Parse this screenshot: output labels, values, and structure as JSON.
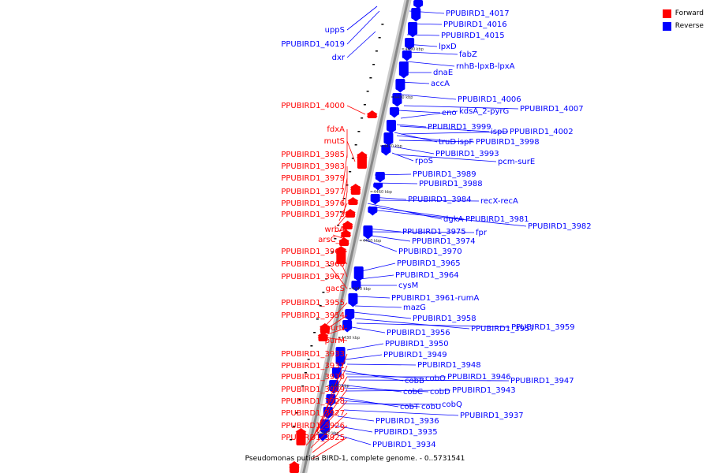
{
  "colors": {
    "forward": "#ff0000",
    "reverse": "#0000ff",
    "backbone": "#888888"
  },
  "legend": [
    {
      "label": "Forward",
      "color": "#ff0000"
    },
    {
      "label": "Reverse",
      "color": "#0000ff"
    }
  ],
  "caption": "Pseudomonas putida BIRD-1, complete genome. - 0..5731541",
  "scale_ticks": [
    "4490 kbp",
    "4480 kbp",
    "4470 kbp",
    "4460 kbp",
    "4450 kbp",
    "4440 kbp",
    "4430 kbp",
    "4420 kbp",
    "4410 kbp"
  ],
  "forward_labels": [
    "uppS",
    "PPUBIRD1_4019",
    "dxr",
    "PPUBIRD1_4000",
    "fdxA",
    "mutS",
    "PPUBIRD1_3985",
    "PPUBIRD1_3983",
    "PPUBIRD1_3979",
    "PPUBIRD1_3977",
    "PPUBIRD1_3976",
    "PPUBIRD1_3973",
    "wrbA",
    "arsC_2",
    "PPUBIRD1_3969",
    "PPUBIRD1_3968",
    "PPUBIRD1_3967",
    "gacS",
    "PPUBIRD1_3955",
    "PPUBIRD1_3954",
    "purN",
    "purM",
    "PPUBIRD1_3933",
    "PPUBIRD1_3931",
    "PPUBIRD1_3930",
    "PPUBIRD1_3929",
    "PPUBIRD1_3928",
    "PPUBIRD1_3927",
    "PPUBIRD1_3926",
    "PPUBIRD1_3925"
  ],
  "reverse_labels": [
    "PPUBIRD1_4017",
    "PPUBIRD1_4016",
    "PPUBIRD1_4015",
    "lpxD",
    "fabZ",
    "rnhB-lpxB-lpxA",
    "dnaE",
    "accA",
    "PPUBIRD1_4006",
    "PPUBIRD1_4007",
    "eno",
    "kdsA_2-pyrG",
    "PPUBIRD1_3999",
    "ispD",
    "PPUBIRD1_4002",
    "truD",
    "ispF",
    "PPUBIRD1_3998",
    "PPUBIRD1_3993",
    "rpoS",
    "pcm-surE",
    "PPUBIRD1_3989",
    "PPUBIRD1_3988",
    "PPUBIRD1_3984",
    "recX-recA",
    "dgkA",
    "PPUBIRD1_3981",
    "PPUBIRD1_3982",
    "PPUBIRD1_3975",
    "fpr",
    "PPUBIRD1_3974",
    "PPUBIRD1_3970",
    "PPUBIRD1_3965",
    "PPUBIRD1_3964",
    "cysM",
    "PPUBIRD1_3961-rumA",
    "mazG",
    "PPUBIRD1_3958",
    "PPUBIRD1_3957",
    "PPUBIRD1_3959",
    "PPUBIRD1_3956",
    "PPUBIRD1_3950",
    "PPUBIRD1_3949",
    "PPUBIRD1_3948",
    "cobB",
    "cobO",
    "PPUBIRD1_3946",
    "PPUBIRD1_3947",
    "cobC",
    "cobD",
    "PPUBIRD1_3943",
    "cobT",
    "cobU",
    "cobQ",
    "PPUBIRD1_3937",
    "PPUBIRD1_3936",
    "PPUBIRD1_3935",
    "PPUBIRD1_3934"
  ]
}
